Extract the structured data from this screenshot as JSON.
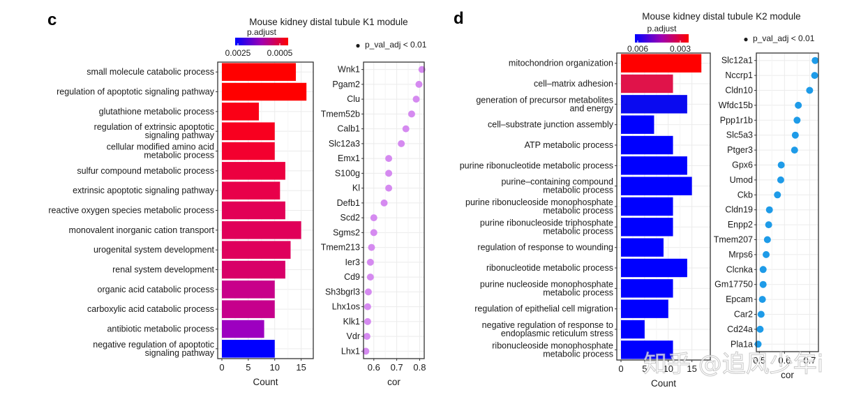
{
  "watermark": "知乎 @追风少年i",
  "chart_data": [
    {
      "panel": "c",
      "title": "Mouse kidney distal tubule K1 module",
      "bar_chart": {
        "type": "bar",
        "orientation": "horizontal",
        "xlabel": "Count",
        "xlim": [
          0,
          16.5
        ],
        "xticks": [
          0,
          5,
          10,
          15
        ],
        "grid": true,
        "color_legend": {
          "title": "p.adjust",
          "low_label": "0.0025",
          "high_label": "0.0005",
          "low_color": "#0000ff",
          "high_color": "#ff0000"
        },
        "categories": [
          [
            "small molecule catabolic process"
          ],
          [
            "regulation of apoptotic signaling pathway"
          ],
          [
            "glutathione metabolic process"
          ],
          [
            "regulation of extrinsic apoptotic",
            "signaling pathway"
          ],
          [
            "cellular modified amino acid",
            "metabolic process"
          ],
          [
            "sulfur compound metabolic process"
          ],
          [
            "extrinsic apoptotic signaling pathway"
          ],
          [
            "reactive oxygen species metabolic process"
          ],
          [
            "monovalent inorganic cation transport"
          ],
          [
            "urogenital system development"
          ],
          [
            "renal system development"
          ],
          [
            "organic acid catabolic process"
          ],
          [
            "carboxylic acid catabolic process"
          ],
          [
            "antibiotic metabolic process"
          ],
          [
            "negative regulation of apoptotic",
            "signaling pathway"
          ]
        ],
        "values": [
          14,
          16,
          7,
          10,
          10,
          12,
          11,
          12,
          15,
          13,
          12,
          10,
          10,
          8,
          10
        ],
        "colors": [
          "#ff0000",
          "#ff0000",
          "#fa0016",
          "#f8001f",
          "#f3002f",
          "#ec0040",
          "#e8004a",
          "#e20056",
          "#e00059",
          "#df005c",
          "#d80068",
          "#c8008a",
          "#c6008c",
          "#9d00c0",
          "#0000ff"
        ]
      },
      "dot_chart": {
        "type": "scatter",
        "xlabel": "cor",
        "xlim": [
          0.555,
          0.82
        ],
        "xticks": [
          0.6,
          0.7,
          0.8
        ],
        "grid": true,
        "legend": {
          "marker": "●",
          "label": "p_val_adj < 0.01",
          "placement": "top-right"
        },
        "color": "#d58af0",
        "genes": [
          "Wnk1",
          "Pgam2",
          "Clu",
          "Tmem52b",
          "Calb1",
          "Slc12a3",
          "Emx1",
          "S100g",
          "Kl",
          "Defb1",
          "Scd2",
          "Sgms2",
          "Tmem213",
          "Ier3",
          "Cd9",
          "Sh3bgrl3",
          "Lhx1os",
          "Klk1",
          "Vdr",
          "Lhx1"
        ],
        "values": [
          0.81,
          0.797,
          0.785,
          0.765,
          0.74,
          0.72,
          0.665,
          0.665,
          0.665,
          0.645,
          0.6,
          0.6,
          0.59,
          0.585,
          0.585,
          0.576,
          0.573,
          0.573,
          0.57,
          0.565
        ]
      }
    },
    {
      "panel": "d",
      "title": "Mouse kidney distal tubule K2 module",
      "bar_chart": {
        "type": "bar",
        "orientation": "horizontal",
        "xlabel": "Count",
        "xlim": [
          0,
          18
        ],
        "xticks": [
          0,
          5,
          10,
          15
        ],
        "grid": true,
        "color_legend": {
          "title": "p.adjust",
          "low_label": "0.006",
          "high_label": "0.003",
          "low_color": "#0000ff",
          "high_color": "#ff0000"
        },
        "categories": [
          [
            "mitochondrion organization"
          ],
          [
            "cell–matrix adhesion"
          ],
          [
            "generation of precursor metabolites",
            "and energy"
          ],
          [
            "cell–substrate junction assembly"
          ],
          [
            "ATP metabolic process"
          ],
          [
            "purine ribonucleotide metabolic process"
          ],
          [
            "purine–containing compound",
            "metabolic process"
          ],
          [
            "purine ribonucleoside monophosphate",
            "metabolic process"
          ],
          [
            "purine ribonucleoside triphosphate",
            "metabolic process"
          ],
          [
            "regulation of response to wounding"
          ],
          [
            "ribonucleotide metabolic process"
          ],
          [
            "purine nucleoside monophosphate",
            "metabolic process"
          ],
          [
            "regulation of epithelial cell migration"
          ],
          [
            "negative regulation of response to",
            "endoplasmic reticulum stress"
          ],
          [
            "ribonucleoside monophosphate",
            "metabolic process"
          ]
        ],
        "values": [
          17,
          11,
          14,
          7,
          11,
          14,
          15,
          11,
          11,
          9,
          14,
          11,
          10,
          5,
          11
        ],
        "colors": [
          "#ff0000",
          "#e0134a",
          "#0a0af0",
          "#0000ff",
          "#0000ff",
          "#0000ff",
          "#0000ff",
          "#0000ff",
          "#0000ff",
          "#0000ff",
          "#0000ff",
          "#0000ff",
          "#0000ff",
          "#0000ff",
          "#0000ff"
        ]
      },
      "dot_chart": {
        "type": "scatter",
        "xlabel": "cor",
        "xlim": [
          0.488,
          0.735
        ],
        "xticks": [
          0.5,
          0.6,
          0.7
        ],
        "grid": true,
        "legend": {
          "marker": "●",
          "label": "p_val_adj < 0.01",
          "placement": "top-right"
        },
        "color": "#1e9be8",
        "genes": [
          "Slc12a1",
          "Nccrp1",
          "Cldn10",
          "Wfdc15b",
          "Ppp1r1b",
          "Slc5a3",
          "Ptger3",
          "Gpx6",
          "Umod",
          "Ckb",
          "Cldn19",
          "Enpp2",
          "Tmem207",
          "Mrps6",
          "Clcnka",
          "Gm17750",
          "Epcam",
          "Car2",
          "Cd24a",
          "Pla1a"
        ],
        "values": [
          0.722,
          0.72,
          0.7,
          0.655,
          0.65,
          0.643,
          0.64,
          0.587,
          0.585,
          0.572,
          0.54,
          0.537,
          0.532,
          0.527,
          0.515,
          0.515,
          0.512,
          0.507,
          0.503,
          0.495
        ]
      }
    }
  ]
}
